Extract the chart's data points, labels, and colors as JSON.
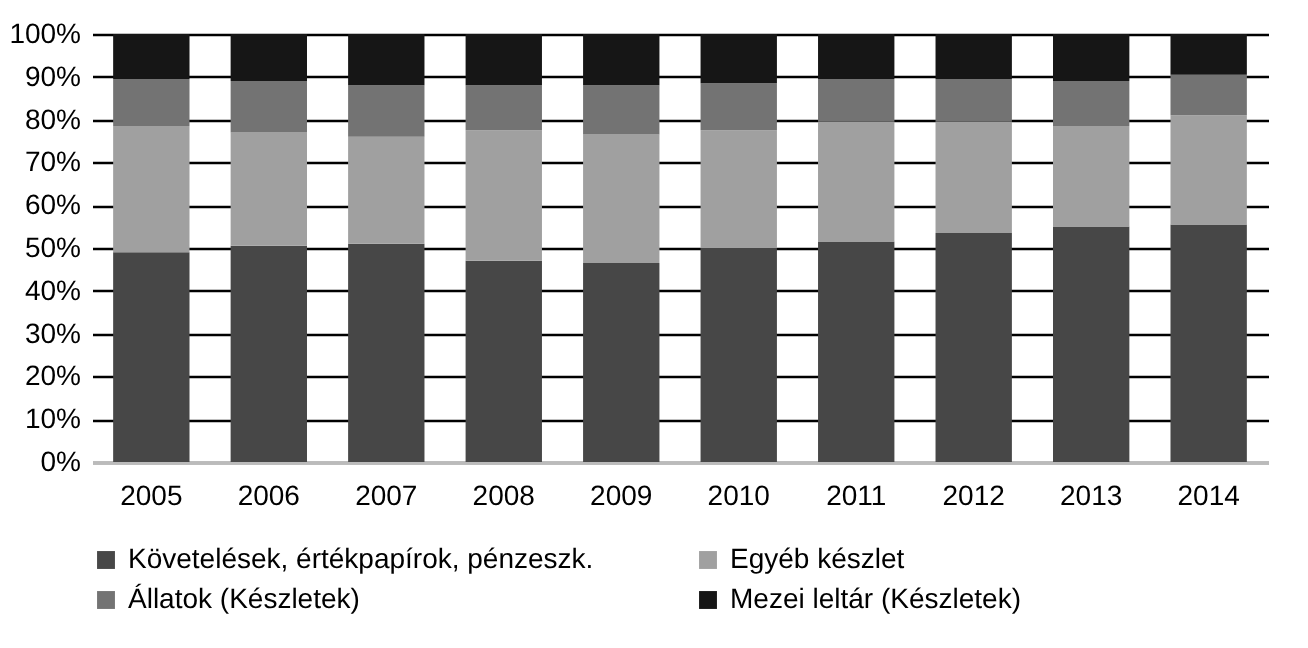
{
  "chart_data": {
    "type": "bar",
    "stacked": true,
    "categories": [
      "2005",
      "2006",
      "2007",
      "2008",
      "2009",
      "2010",
      "2011",
      "2012",
      "2013",
      "2014"
    ],
    "series": [
      {
        "name": "Követelések, értékpapírok, pénzeszk.",
        "color": "#474747",
        "values": [
          49,
          50.5,
          51,
          47,
          46.5,
          50,
          51.5,
          53.5,
          55,
          55.5
        ]
      },
      {
        "name": "Egyéb készlet",
        "color": "#a0a0a0",
        "values": [
          29.5,
          26.5,
          25,
          30.5,
          30,
          27.5,
          28,
          26,
          23.5,
          25.5
        ]
      },
      {
        "name": "Állatok (Készletek)",
        "color": "#737373",
        "values": [
          11,
          12,
          12,
          10.5,
          11.5,
          11,
          10,
          10,
          10.5,
          9.5
        ]
      },
      {
        "name": "Mezei leltár (Készletek)",
        "color": "#161616",
        "values": [
          10.5,
          11,
          12,
          12,
          12,
          11.5,
          10.5,
          10.5,
          11,
          9.5
        ]
      }
    ],
    "ylim": [
      0,
      100
    ],
    "yticks": [
      {
        "value": 0,
        "label": "0%"
      },
      {
        "value": 10,
        "label": "10%"
      },
      {
        "value": 20,
        "label": "20%"
      },
      {
        "value": 30,
        "label": "30%"
      },
      {
        "value": 40,
        "label": "40%"
      },
      {
        "value": 50,
        "label": "50%"
      },
      {
        "value": 60,
        "label": "60%"
      },
      {
        "value": 70,
        "label": "70%"
      },
      {
        "value": 80,
        "label": "80%"
      },
      {
        "value": 90,
        "label": "90%"
      },
      {
        "value": 100,
        "label": "100%"
      }
    ],
    "grid": "y",
    "legend": "bottom"
  }
}
